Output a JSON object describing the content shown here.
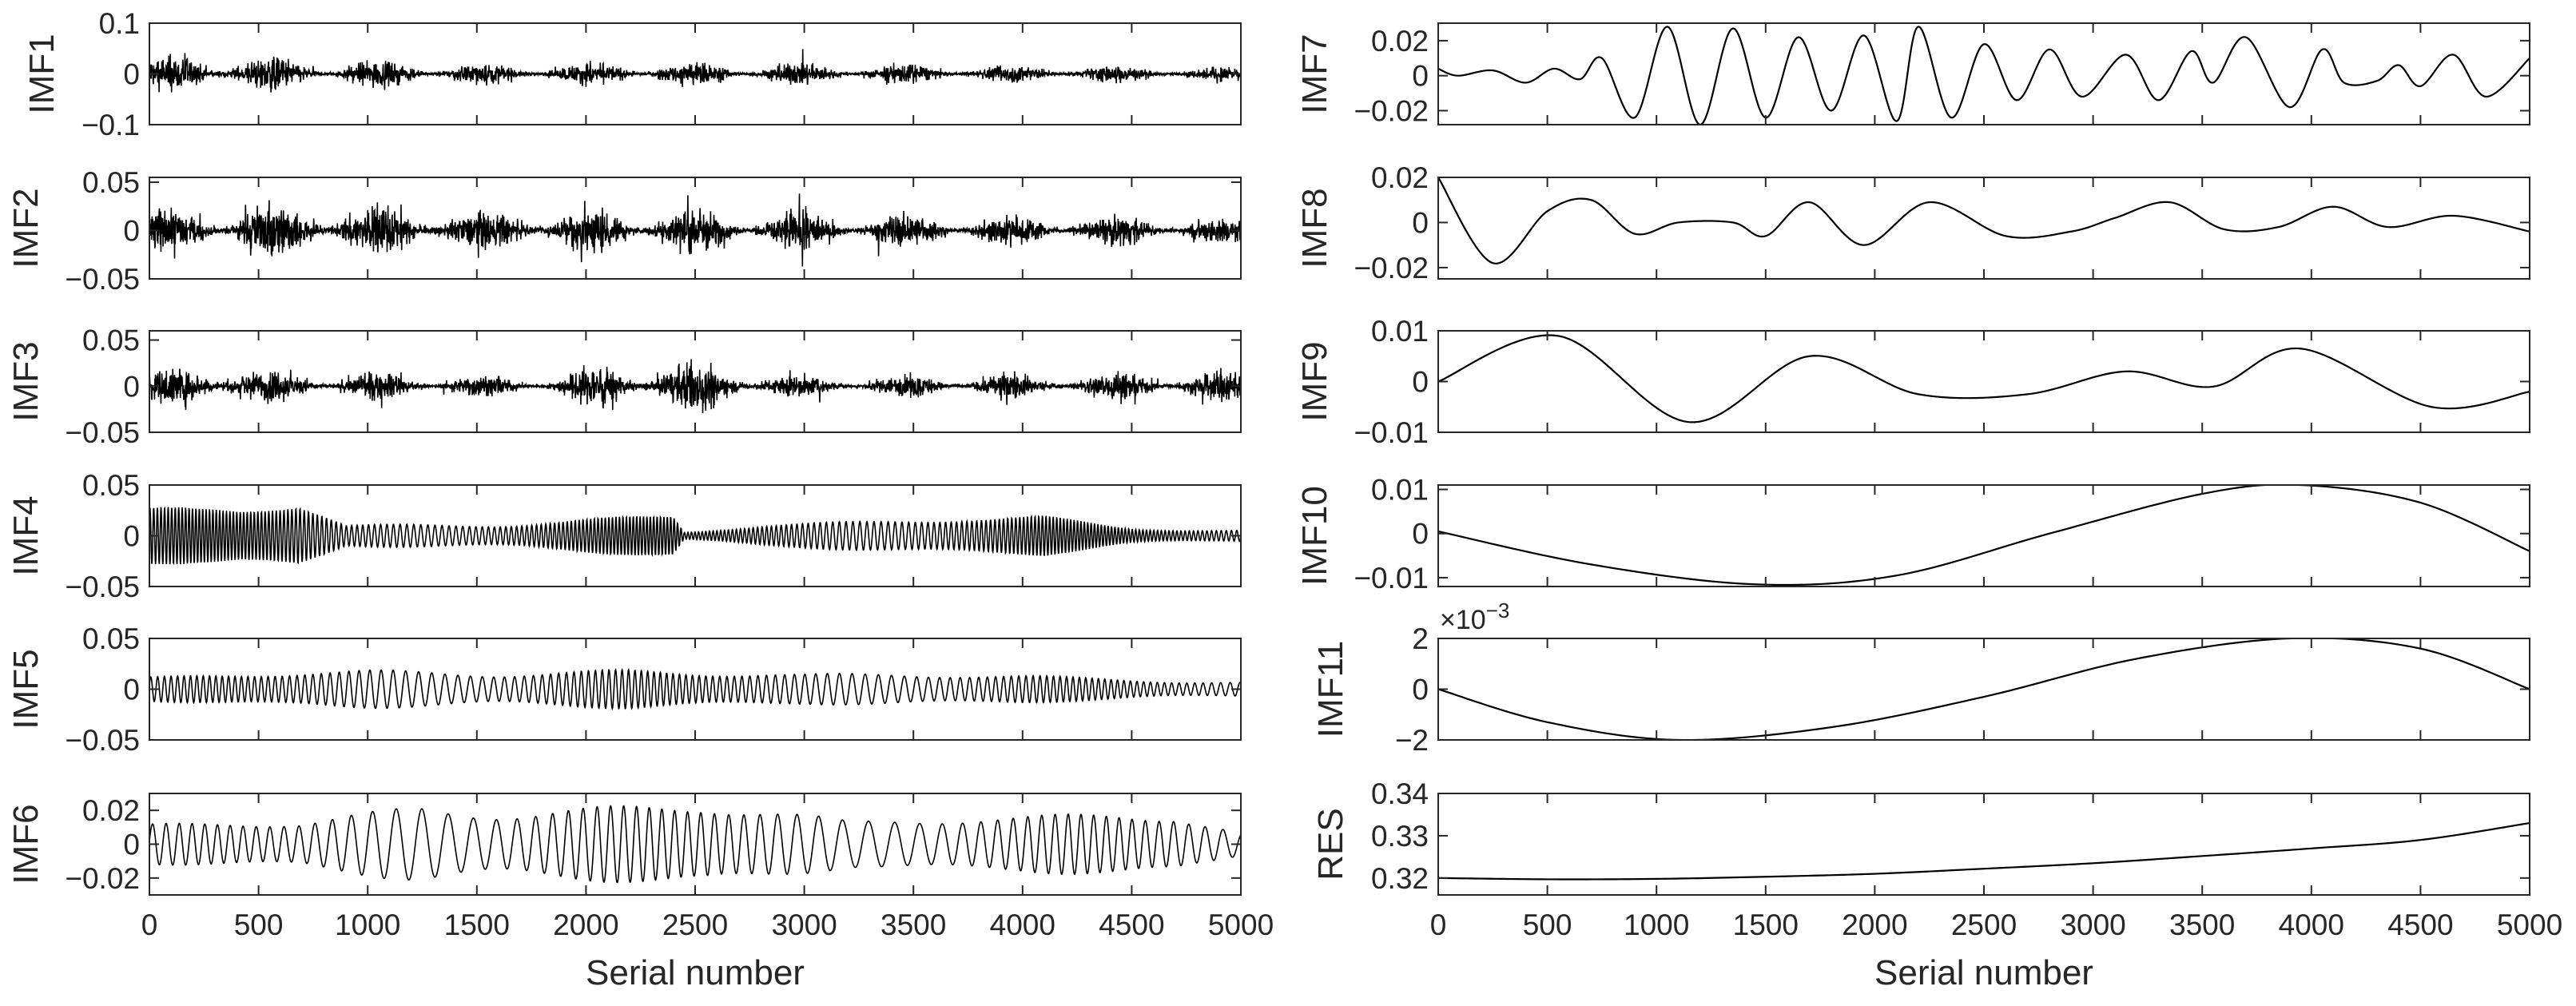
{
  "figure": {
    "xlabel_left": "Serial number",
    "xlabel_right": "Serial number",
    "x_ticks": [
      "0",
      "500",
      "1000",
      "1500",
      "2000",
      "2500",
      "3000",
      "3500",
      "4000",
      "4500",
      "5000"
    ]
  },
  "chart_data": [
    {
      "type": "line",
      "ylabel": "IMF1",
      "xlim": [
        0,
        5000
      ],
      "ylim": [
        -0.1,
        0.1
      ],
      "yticks": [
        -0.1,
        0,
        0.1
      ],
      "ytick_labels": [
        "−0.1",
        "0",
        "0.1"
      ],
      "series": [
        {
          "x_range": [
            0,
            5000
          ],
          "kind": "noise",
          "cycles": 1100,
          "envelope": [
            [
              0,
              0.055
            ],
            [
              300,
              0.06
            ],
            [
              800,
              0.045
            ],
            [
              1500,
              0.03
            ],
            [
              2500,
              0.035
            ],
            [
              3500,
              0.03
            ],
            [
              4500,
              0.025
            ],
            [
              5000,
              0.02
            ]
          ]
        }
      ]
    },
    {
      "type": "line",
      "ylabel": "IMF2",
      "xlim": [
        0,
        5000
      ],
      "ylim": [
        -0.05,
        0.055
      ],
      "yticks": [
        -0.05,
        0,
        0.05
      ],
      "ytick_labels": [
        "−0.05",
        "0",
        "0.05"
      ],
      "series": [
        {
          "x_range": [
            0,
            5000
          ],
          "kind": "noise",
          "cycles": 850,
          "envelope": [
            [
              0,
              0.035
            ],
            [
              800,
              0.045
            ],
            [
              1500,
              0.03
            ],
            [
              2000,
              0.04
            ],
            [
              2600,
              0.032
            ],
            [
              3500,
              0.025
            ],
            [
              4500,
              0.022
            ],
            [
              5000,
              0.02
            ]
          ]
        }
      ]
    },
    {
      "type": "line",
      "ylabel": "IMF3",
      "xlim": [
        0,
        5000
      ],
      "ylim": [
        -0.05,
        0.06
      ],
      "yticks": [
        -0.05,
        0,
        0.05
      ],
      "ytick_labels": [
        "−0.05",
        "0",
        "0.05"
      ],
      "series": [
        {
          "x_range": [
            0,
            5000
          ],
          "kind": "noise",
          "cycles": 600,
          "envelope": [
            [
              0,
              0.022
            ],
            [
              200,
              0.04
            ],
            [
              350,
              0.058
            ],
            [
              500,
              0.025
            ],
            [
              1800,
              0.015
            ],
            [
              2050,
              0.035
            ],
            [
              2550,
              0.045
            ],
            [
              3000,
              0.015
            ],
            [
              4700,
              0.025
            ],
            [
              5000,
              0.03
            ]
          ]
        }
      ]
    },
    {
      "type": "line",
      "ylabel": "IMF4",
      "xlim": [
        0,
        5000
      ],
      "ylim": [
        -0.05,
        0.05
      ],
      "yticks": [
        -0.05,
        0,
        0.05
      ],
      "ytick_labels": [
        "−0.05",
        "0",
        "0.05"
      ],
      "series": [
        {
          "x_range": [
            0,
            5000
          ],
          "kind": "wave",
          "cycles": 280,
          "envelope": [
            [
              0,
              0.028
            ],
            [
              400,
              0.03
            ],
            [
              680,
              0.038
            ],
            [
              900,
              0.012
            ],
            [
              1700,
              0.018
            ],
            [
              2400,
              0.028
            ],
            [
              2450,
              0.005
            ],
            [
              2800,
              0.012
            ],
            [
              3300,
              0.015
            ],
            [
              4100,
              0.022
            ],
            [
              4500,
              0.01
            ],
            [
              5000,
              0.008
            ]
          ]
        }
      ]
    },
    {
      "type": "line",
      "ylabel": "IMF5",
      "xlim": [
        0,
        5000
      ],
      "ylim": [
        -0.05,
        0.05
      ],
      "yticks": [
        -0.05,
        0,
        0.05
      ],
      "ytick_labels": [
        "−0.05",
        "0",
        "0.05"
      ],
      "series": [
        {
          "x_range": [
            0,
            5000
          ],
          "kind": "wave",
          "cycles": 150,
          "envelope": [
            [
              0,
              0.012
            ],
            [
              1000,
              0.022
            ],
            [
              2200,
              0.025
            ],
            [
              3000,
              0.016
            ],
            [
              4000,
              0.015
            ],
            [
              5000,
              0.01
            ]
          ]
        }
      ]
    },
    {
      "type": "line",
      "ylabel": "IMF6",
      "xlim": [
        0,
        5000
      ],
      "ylim": [
        -0.03,
        0.03
      ],
      "yticks": [
        -0.02,
        0,
        0.02
      ],
      "ytick_labels": [
        "−0.02",
        "0",
        "0.02"
      ],
      "series": [
        {
          "x_range": [
            0,
            5000
          ],
          "kind": "wave",
          "cycles": 75,
          "envelope": [
            [
              0,
              0.012
            ],
            [
              700,
              0.015
            ],
            [
              1250,
              0.028
            ],
            [
              2550,
              0.03
            ],
            [
              3200,
              0.014
            ],
            [
              4000,
              0.018
            ],
            [
              4700,
              0.025
            ],
            [
              5000,
              0.01
            ]
          ]
        }
      ]
    },
    {
      "type": "line",
      "ylabel": "IMF7",
      "xlim": [
        0,
        5000
      ],
      "ylim": [
        -0.028,
        0.03
      ],
      "yticks": [
        -0.02,
        0,
        0.02
      ],
      "ytick_labels": [
        "−0.02",
        "0",
        "0.02"
      ],
      "series": [
        {
          "x": [
            0,
            90,
            250,
            400,
            530,
            650,
            750,
            900,
            1050,
            1200,
            1350,
            1500,
            1650,
            1800,
            1950,
            2100,
            2200,
            2350,
            2500,
            2650,
            2800,
            2950,
            3150,
            3300,
            3450,
            3550,
            3700,
            3900,
            4050,
            4150,
            4300,
            4400,
            4500,
            4650,
            4800,
            5000
          ],
          "y": [
            0.004,
            0.0,
            0.003,
            -0.004,
            0.004,
            -0.002,
            0.01,
            -0.024,
            0.028,
            -0.028,
            0.027,
            -0.024,
            0.022,
            -0.02,
            0.023,
            -0.026,
            0.028,
            -0.024,
            0.018,
            -0.014,
            0.015,
            -0.012,
            0.012,
            -0.014,
            0.014,
            -0.004,
            0.022,
            -0.018,
            0.015,
            -0.004,
            -0.003,
            0.006,
            -0.006,
            0.012,
            -0.012,
            0.01
          ]
        }
      ]
    },
    {
      "type": "line",
      "ylabel": "IMF8",
      "xlim": [
        0,
        5000
      ],
      "ylim": [
        -0.025,
        0.02
      ],
      "yticks": [
        -0.02,
        0,
        0.02
      ],
      "ytick_labels": [
        "−0.02",
        "0",
        "0.02"
      ],
      "series": [
        {
          "x": [
            0,
            250,
            500,
            700,
            900,
            1100,
            1350,
            1500,
            1700,
            1950,
            2250,
            2600,
            2900,
            3100,
            3350,
            3600,
            3850,
            4100,
            4350,
            4650,
            5000
          ],
          "y": [
            0.02,
            -0.018,
            0.005,
            0.01,
            -0.005,
            0.0,
            0.0,
            -0.006,
            0.009,
            -0.01,
            0.009,
            -0.006,
            -0.004,
            0.002,
            0.009,
            -0.003,
            -0.002,
            0.007,
            -0.002,
            0.003,
            -0.004
          ]
        }
      ]
    },
    {
      "type": "line",
      "ylabel": "IMF9",
      "xlim": [
        0,
        5000
      ],
      "ylim": [
        -0.01,
        0.01
      ],
      "yticks": [
        -0.01,
        0,
        0.01
      ],
      "ytick_labels": [
        "−0.01",
        "0",
        "0.01"
      ],
      "series": [
        {
          "x": [
            0,
            550,
            1150,
            1700,
            2200,
            2700,
            3150,
            3550,
            3950,
            4550,
            5000
          ],
          "y": [
            0.0,
            0.009,
            -0.008,
            0.005,
            -0.0025,
            -0.0025,
            0.002,
            -0.001,
            0.0065,
            -0.005,
            -0.002
          ]
        }
      ]
    },
    {
      "type": "line",
      "ylabel": "IMF10",
      "xlim": [
        0,
        5000
      ],
      "ylim": [
        -0.012,
        0.011
      ],
      "yticks": [
        -0.01,
        0,
        0.01
      ],
      "ytick_labels": [
        "−0.01",
        "0",
        "0.01"
      ],
      "series": [
        {
          "x": [
            0,
            700,
            1450,
            2100,
            2800,
            3500,
            3950,
            4500,
            5000
          ],
          "y": [
            0.0005,
            -0.007,
            -0.0115,
            -0.0095,
            0.0,
            0.009,
            0.011,
            0.007,
            -0.004
          ]
        }
      ]
    },
    {
      "type": "line",
      "ylabel": "IMF11",
      "xlim": [
        0,
        5000
      ],
      "ylim": [
        -2,
        2
      ],
      "yticks": [
        -2,
        0,
        2
      ],
      "ytick_labels": [
        "−2",
        "0",
        "2"
      ],
      "scale_label": "×10",
      "scale_exponent": "−3",
      "series": [
        {
          "x": [
            0,
            500,
            1100,
            1800,
            2500,
            3200,
            3900,
            4500,
            5000
          ],
          "y": [
            0.0,
            -1.3,
            -2.0,
            -1.5,
            -0.3,
            1.2,
            2.0,
            1.6,
            0.0
          ]
        }
      ]
    },
    {
      "type": "line",
      "ylabel": "RES",
      "xlim": [
        0,
        5000
      ],
      "ylim": [
        0.316,
        0.34
      ],
      "yticks": [
        0.32,
        0.33,
        0.34
      ],
      "ytick_labels": [
        "0.32",
        "0.33",
        "0.34"
      ],
      "series": [
        {
          "x": [
            0,
            500,
            1000,
            1500,
            2000,
            2500,
            3000,
            3500,
            4000,
            4500,
            5000
          ],
          "y": [
            0.32,
            0.3197,
            0.3198,
            0.3203,
            0.321,
            0.3222,
            0.3235,
            0.3252,
            0.327,
            0.329,
            0.333
          ]
        }
      ]
    }
  ]
}
